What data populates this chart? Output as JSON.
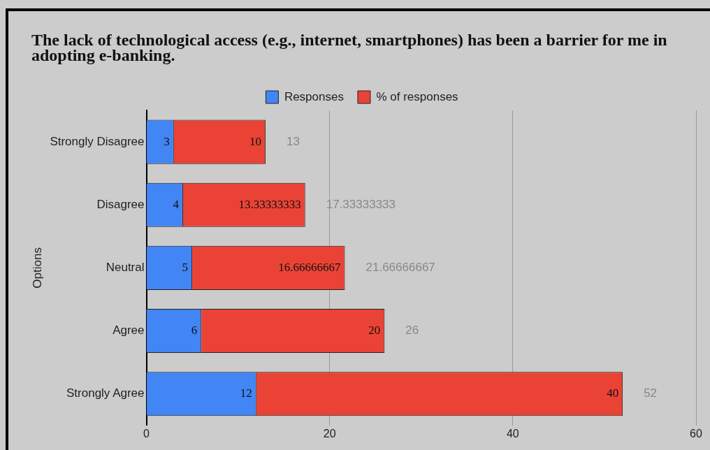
{
  "chart_data": {
    "type": "bar",
    "orientation": "horizontal",
    "stacked": true,
    "title": "The lack of technological access (e.g., internet, smartphones) has been a barrier for me in adopting e-banking.",
    "ylabel": "Options",
    "categories": [
      "Strongly Disagree",
      "Disagree",
      "Neutral",
      "Agree",
      "Strongly Agree"
    ],
    "series": [
      {
        "name": "Responses",
        "color": "#4285f4",
        "values": [
          3,
          4,
          5,
          6,
          12
        ]
      },
      {
        "name": "% of responses",
        "color": "#ea4335",
        "values": [
          10,
          13.33333333,
          16.66666667,
          20,
          40
        ]
      }
    ],
    "data_labels": true,
    "totals": [
      "13",
      "17.33333333",
      "21.66666667",
      "26",
      "52"
    ],
    "xlim": [
      0,
      60
    ],
    "xticks": [
      0,
      20,
      40,
      60
    ],
    "grid": "x",
    "legend": "top"
  }
}
